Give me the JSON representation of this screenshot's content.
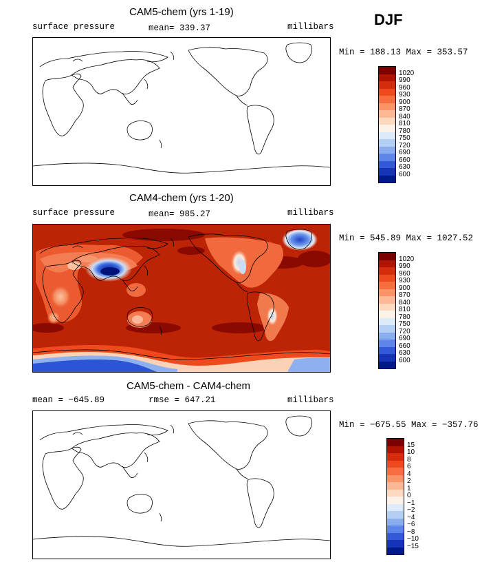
{
  "season": "DJF",
  "panels": [
    {
      "title": "CAM5-chem (yrs 1-19)",
      "left_label": "surface pressure",
      "center_label": "mean= 339.37",
      "right_label": "millibars",
      "minmax": "Min = 188.13 Max = 353.57",
      "filled": false,
      "colorbar": {
        "levels": [
          "1020",
          "990",
          "960",
          "930",
          "900",
          "870",
          "840",
          "810",
          "780",
          "750",
          "720",
          "690",
          "660",
          "630",
          "600"
        ],
        "colors": [
          "#7d0000",
          "#b01400",
          "#d42c0c",
          "#ee4a1e",
          "#f66d3f",
          "#fa9366",
          "#fcb794",
          "#fdd9c0",
          "#fdf2e8",
          "#dceafa",
          "#b4cff4",
          "#89adef",
          "#5e85e9",
          "#3459d8",
          "#1634b8",
          "#001a8c"
        ]
      }
    },
    {
      "title": "CAM4-chem (yrs 1-20)",
      "left_label": "surface pressure",
      "center_label": "mean= 985.27",
      "right_label": "millibars",
      "minmax": "Min = 545.89 Max = 1027.52",
      "filled": true,
      "colorbar": {
        "levels": [
          "1020",
          "990",
          "960",
          "930",
          "900",
          "870",
          "840",
          "810",
          "780",
          "750",
          "720",
          "690",
          "660",
          "630",
          "600"
        ],
        "colors": [
          "#7d0000",
          "#b01400",
          "#d42c0c",
          "#ee4a1e",
          "#f66d3f",
          "#fa9366",
          "#fcb794",
          "#fdd9c0",
          "#fdf2e8",
          "#dceafa",
          "#b4cff4",
          "#89adef",
          "#5e85e9",
          "#3459d8",
          "#1634b8",
          "#001a8c"
        ]
      }
    },
    {
      "title": "CAM5-chem - CAM4-chem",
      "left_label": "mean = −645.89",
      "center_label": "rmse = 647.21",
      "right_label": "millibars",
      "minmax": "Min = −675.55 Max = −357.76",
      "filled": false,
      "colorbar": {
        "levels": [
          "15",
          "10",
          "8",
          "6",
          "4",
          "2",
          "1",
          "0",
          "−1",
          "−2",
          "−4",
          "−6",
          "−8",
          "−10",
          "−15"
        ],
        "colors": [
          "#7d0000",
          "#b01400",
          "#d42c0c",
          "#ee4a1e",
          "#f66d3f",
          "#fa9366",
          "#fcb794",
          "#fdd9c0",
          "#fdf2e8",
          "#dceafa",
          "#b4cff4",
          "#89adef",
          "#5e85e9",
          "#3459d8",
          "#1634b8",
          "#001a8c"
        ]
      }
    }
  ]
}
